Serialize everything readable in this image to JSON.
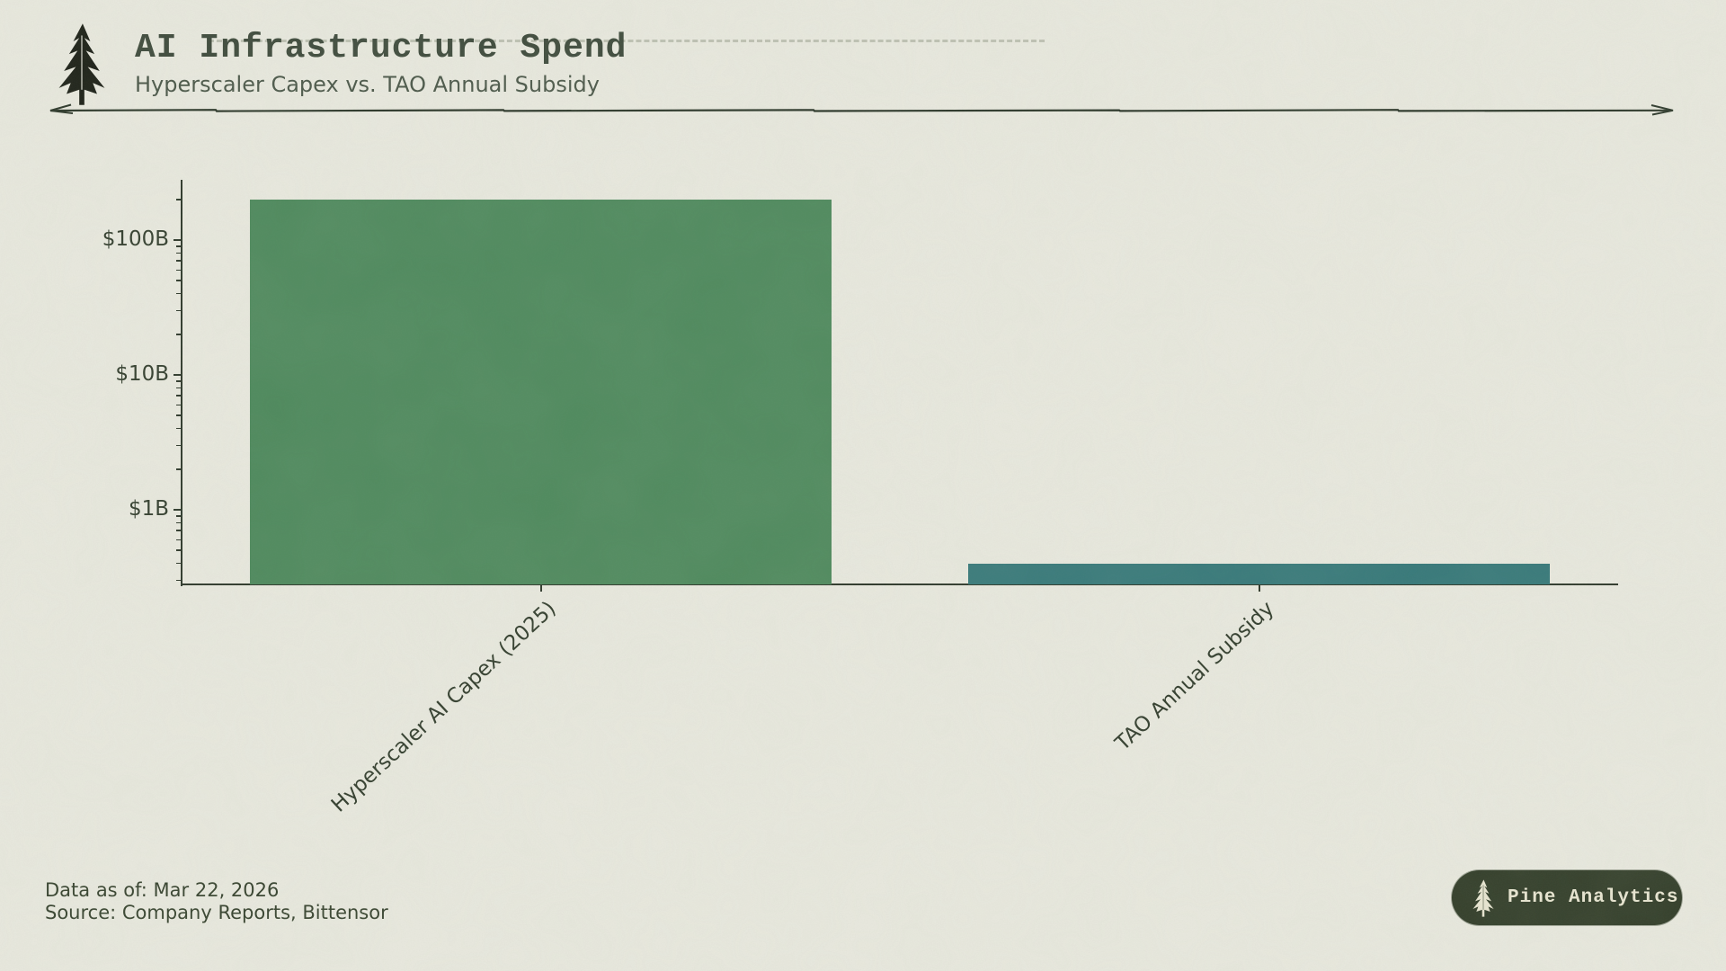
{
  "header": {
    "title": "AI Infrastructure Spend",
    "subtitle": "Hyperscaler Capex vs. TAO Annual Subsidy"
  },
  "chart_data": {
    "type": "bar",
    "title": "AI Infrastructure Spend",
    "subtitle": "Hyperscaler Capex vs. TAO Annual Subsidy",
    "yscale": "log",
    "categories": [
      "Hyperscaler AI Capex (2025)",
      "TAO Annual Subsidy"
    ],
    "values_usd_billions": [
      200,
      0.4
    ],
    "series_colors": [
      "#4f8a5e",
      "#37797a"
    ],
    "ytick_labels": [
      "$1B",
      "$10B",
      "$100B"
    ],
    "ytick_values_billions": [
      1,
      10,
      100
    ],
    "ylim_billions": [
      0.28,
      280
    ],
    "xlabel": "",
    "ylabel": "",
    "grid": false,
    "legend": "none",
    "x_tick_rotation_deg": 43
  },
  "footer": {
    "data_as_of": "Data as of: Mar 22, 2026",
    "source": "Source: Company Reports, Bittensor"
  },
  "badge": {
    "label": "Pine Analytics",
    "bg": "#333e2a",
    "fg": "#e9e6d2"
  },
  "colors": {
    "paper": "#e9e9df",
    "ink": "#2e382b",
    "title_text": "#3e4a3c",
    "bar_green": "#4f8a5e",
    "bar_teal": "#37797a"
  }
}
